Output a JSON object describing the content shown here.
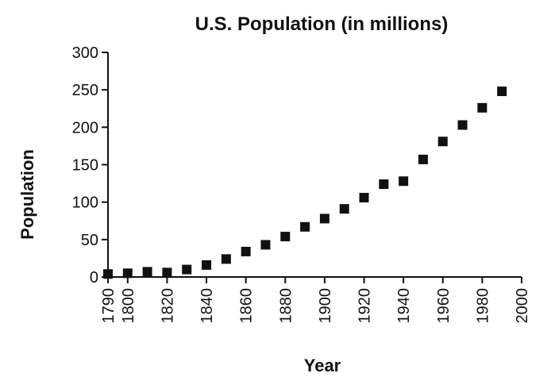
{
  "chart_data": {
    "type": "scatter",
    "title": "U.S. Population (in millions)",
    "xlabel": "Year",
    "ylabel": "Population",
    "xlim": [
      1790,
      2000
    ],
    "ylim": [
      0,
      300
    ],
    "xticks": [
      1790,
      1800,
      1820,
      1840,
      1860,
      1880,
      1900,
      1920,
      1940,
      1960,
      1980,
      2000
    ],
    "yticks": [
      0,
      50,
      100,
      150,
      200,
      250,
      300
    ],
    "grid": false,
    "marker": "square",
    "marker_color": "#111111",
    "series": [
      {
        "x": [
          1790,
          1800,
          1810,
          1820,
          1830,
          1840,
          1850,
          1860,
          1870,
          1880,
          1890,
          1900,
          1910,
          1920,
          1930,
          1940,
          1950,
          1960,
          1970,
          1980,
          1990
        ],
        "y": [
          4,
          5,
          7,
          6,
          10,
          16,
          24,
          34,
          43,
          54,
          67,
          78,
          91,
          106,
          124,
          128,
          157,
          181,
          203,
          226,
          248
        ]
      }
    ]
  }
}
